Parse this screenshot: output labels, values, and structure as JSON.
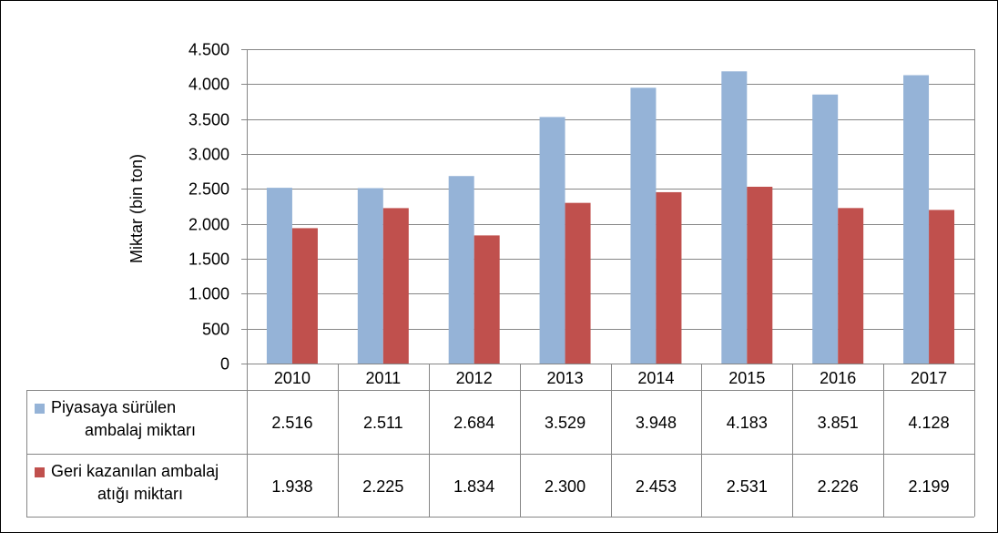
{
  "chart_data": {
    "type": "bar",
    "categories": [
      "2010",
      "2011",
      "2012",
      "2013",
      "2014",
      "2015",
      "2016",
      "2017"
    ],
    "series": [
      {
        "name_lines": [
          "Piyasaya sürülen",
          "ambalaj miktarı"
        ],
        "color": "#95b3d7",
        "values": [
          2516,
          2511,
          2684,
          3529,
          3948,
          4183,
          3851,
          4128
        ],
        "value_labels": [
          "2.516",
          "2.511",
          "2.684",
          "3.529",
          "3.948",
          "4.183",
          "3.851",
          "4.128"
        ]
      },
      {
        "name_lines": [
          "Geri kazanılan ambalaj",
          "atığı miktarı"
        ],
        "color": "#c0504d",
        "values": [
          1938,
          2225,
          1834,
          2300,
          2453,
          2531,
          2226,
          2199
        ],
        "value_labels": [
          "1.938",
          "2.225",
          "1.834",
          "2.300",
          "2.453",
          "2.531",
          "2.226",
          "2.199"
        ]
      }
    ],
    "ylabel": "Miktar  (bin ton)",
    "ylim": [
      0,
      4500
    ],
    "yticks": [
      0,
      500,
      1000,
      1500,
      2000,
      2500,
      3000,
      3500,
      4000,
      4500
    ],
    "ytick_labels": [
      "0",
      "500",
      "1.000",
      "1.500",
      "2.000",
      "2.500",
      "3.000",
      "3.500",
      "4.000",
      "4.500"
    ],
    "grid": true,
    "legend": "data-table",
    "gridline_color": "#868686"
  }
}
